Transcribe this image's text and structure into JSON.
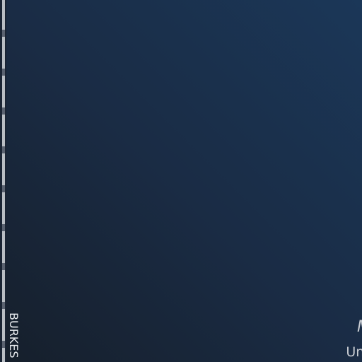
{
  "app": {
    "edge_label": "BURKES",
    "meta_title": "M",
    "meta_subtitle": "Unkno"
  },
  "colors": {
    "background_dark": "#161f2b",
    "background_light": "#1b3758",
    "rail": "#b9bec4",
    "text": "#e8ebef"
  }
}
